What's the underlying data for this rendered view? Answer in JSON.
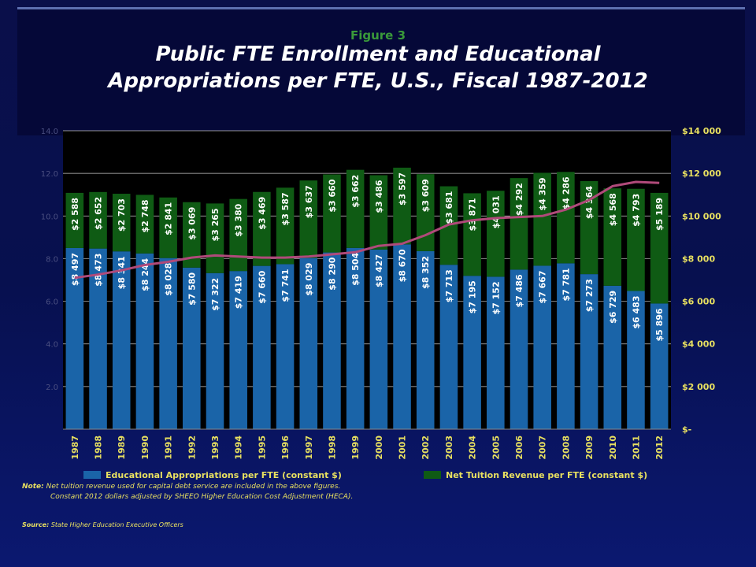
{
  "figure_label": "Figure 3",
  "title_line1": "Public FTE Enrollment and Educational",
  "title_line2": "Appropriations per FTE, U.S., Fiscal 1987-2012",
  "note_label": "Note:",
  "note_line1": "Net tuition revenue used for capital debt service are included in the above figures.",
  "note_line2": "Constant 2012 dollars adjusted by SHEEO Higher Education Cost Adjustment (HECA).",
  "source_label": "Source:",
  "source_text": "State Higher Education Executive Officers",
  "colors": {
    "appropriations": "#1a64a8",
    "tuition": "#0f5b14",
    "enrollment_line": "#b04a7a",
    "axis_text": "#e8e060",
    "grid": "#c8c8c8"
  },
  "chart_data": {
    "type": "bar",
    "stacked": true,
    "categories": [
      "1987",
      "1988",
      "1989",
      "1990",
      "1991",
      "1992",
      "1993",
      "1994",
      "1995",
      "1996",
      "1997",
      "1998",
      "1999",
      "2000",
      "2001",
      "2002",
      "2003",
      "2004",
      "2005",
      "2006",
      "2007",
      "2008",
      "2009",
      "2010",
      "2011",
      "2012"
    ],
    "series": [
      {
        "name": "Educational Appropriations per FTE (constant $)",
        "values": [
          8497,
          8473,
          8341,
          8244,
          8028,
          7580,
          7322,
          7419,
          7660,
          7741,
          8029,
          8290,
          8504,
          8427,
          8670,
          8352,
          7713,
          7195,
          7152,
          7486,
          7667,
          7781,
          7273,
          6729,
          6483,
          5896
        ],
        "labels": [
          "$8 497",
          "$8 473",
          "$8 341",
          "$8 244",
          "$8 028",
          "$7 580",
          "$7 322",
          "$7 419",
          "$7 660",
          "$7 741",
          "$8 029",
          "$8 290",
          "$8 504",
          "$8 427",
          "$8 670",
          "$8 352",
          "$7 713",
          "$7 195",
          "$7 152",
          "$7 486",
          "$7 667",
          "$7 781",
          "$7 273",
          "$6 729",
          "$6 483",
          "$5 896"
        ]
      },
      {
        "name": "Net Tuition Revenue per FTE (constant $)",
        "values": [
          2588,
          2652,
          2703,
          2748,
          2841,
          3069,
          3265,
          3380,
          3469,
          3587,
          3637,
          3660,
          3662,
          3486,
          3597,
          3609,
          3681,
          3871,
          4031,
          4292,
          4359,
          4286,
          4364,
          4568,
          4793,
          5189
        ],
        "labels": [
          "$2 588",
          "$2 652",
          "$2 703",
          "$2 748",
          "$2 841",
          "$3 069",
          "$3 265",
          "$3 380",
          "$3 469",
          "$3 587",
          "$3 637",
          "$3 660",
          "$3 662",
          "$3 486",
          "$3 597",
          "$3 609",
          "$3 681",
          "$3 871",
          "$4 031",
          "$4 292",
          "$4 359",
          "$4 286",
          "$4 364",
          "$4 568",
          "$4 793",
          "$5 189"
        ]
      }
    ],
    "line_series": {
      "axis": "left",
      "values": [
        7.1,
        7.25,
        7.45,
        7.7,
        7.85,
        8.05,
        8.15,
        8.1,
        8.05,
        8.05,
        8.1,
        8.2,
        8.3,
        8.6,
        8.7,
        9.1,
        9.6,
        9.8,
        9.9,
        9.95,
        10.0,
        10.3,
        10.75,
        11.4,
        11.6,
        11.55
      ]
    },
    "right_axis": {
      "ylim": [
        0,
        14000
      ],
      "ticks": [
        0,
        2000,
        4000,
        6000,
        8000,
        10000,
        12000,
        14000
      ],
      "tick_labels": [
        "$-",
        "$2 000",
        "$4 000",
        "$6 000",
        "$8 000",
        "$10 000",
        "$12 000",
        "$14 000"
      ]
    },
    "left_axis": {
      "ylim": [
        0,
        14
      ],
      "ticks": [
        0,
        2,
        4,
        6,
        8,
        10,
        12,
        14
      ],
      "tick_labels": [
        "",
        "2.0",
        "4.0",
        "6.0",
        "8.0",
        "10.0",
        "12.0",
        "14.0"
      ]
    },
    "legend_placement": "bottom",
    "grid": true
  }
}
